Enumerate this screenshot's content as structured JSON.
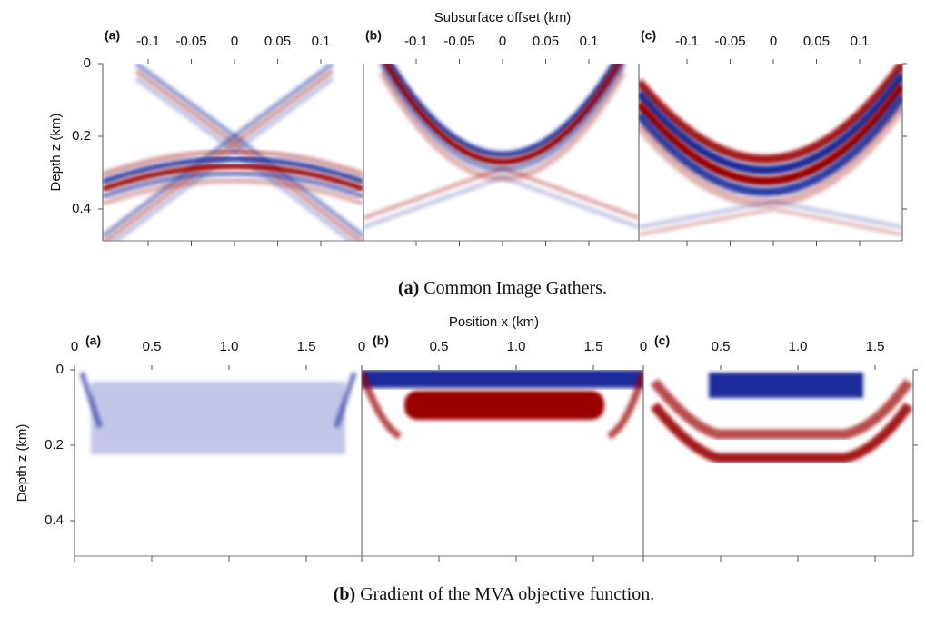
{
  "figure_a": {
    "axis_title": "Subsurface offset (km)",
    "y_label": "Depth z (km)",
    "panels": [
      "(a)",
      "(b)",
      "(c)"
    ],
    "xticks": [
      "-0.1",
      "-0.05",
      "0",
      "0.05",
      "0.1"
    ],
    "yticks": [
      "0",
      "0.2",
      "0.4"
    ],
    "caption_tag": "(a)",
    "caption": "Common Image Gathers."
  },
  "figure_b": {
    "axis_title": "Position x (km)",
    "y_label": "Depth z (km)",
    "panels": [
      "(a)",
      "(b)",
      "(c)"
    ],
    "xticks": [
      "0",
      "0.5",
      "1.0",
      "1.5"
    ],
    "yticks": [
      "0",
      "0.2",
      "0.4"
    ],
    "caption_tag": "(b)",
    "caption": "Gradient of the MVA objective function."
  }
}
